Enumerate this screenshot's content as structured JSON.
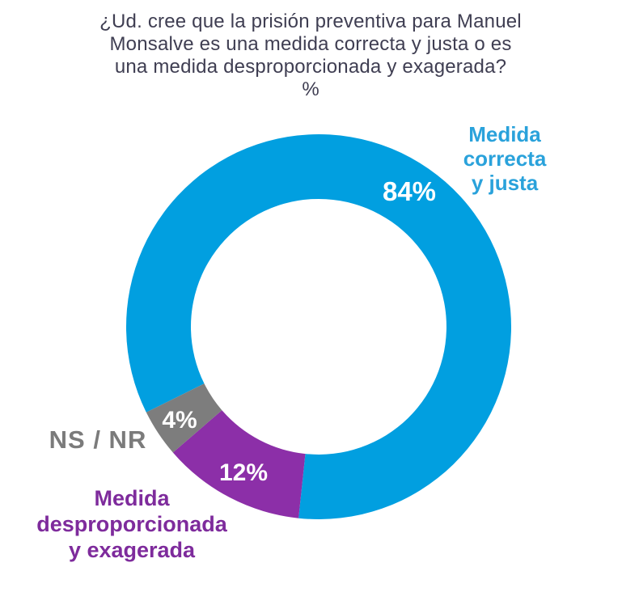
{
  "title": {
    "question": "¿Ud. cree que la prisión preventiva para Manuel\nMonsalve es una medida correcta y justa o es\nuna medida desproporcionada y exagerada?",
    "unit": "%"
  },
  "chart_data": {
    "type": "pie",
    "subtype": "donut",
    "title": "¿Ud. cree que la prisión preventiva para Manuel Monsalve es una medida correcta y justa o es una medida desproporcionada y exagerada?",
    "unit_label": "%",
    "start_angle_deg": 243.6,
    "legend_position": "labels-around-chart",
    "background_color": "#ffffff",
    "categories": [
      "Medida correcta y justa",
      "Medida desproporcionada y exagerada",
      "NS / NR"
    ],
    "values": [
      84,
      12,
      4
    ],
    "segments": [
      {
        "label": "Medida correcta y justa",
        "label_multiline": "Medida correcta\ny justa",
        "value": 84,
        "pct_text": "84%",
        "color": "#019FE0",
        "label_color": "#2AA2DB"
      },
      {
        "label": "Medida desproporcionada y exagerada",
        "label_multiline": "Medida\ndesproporcionada\ny exagerada",
        "value": 12,
        "pct_text": "12%",
        "color": "#8C2FA8",
        "label_color": "#7E2B9C"
      },
      {
        "label": "NS / NR",
        "label_multiline": "NS / NR",
        "value": 4,
        "pct_text": "4%",
        "color": "#7D7D7D",
        "label_color": "#7B7B7B"
      }
    ]
  }
}
